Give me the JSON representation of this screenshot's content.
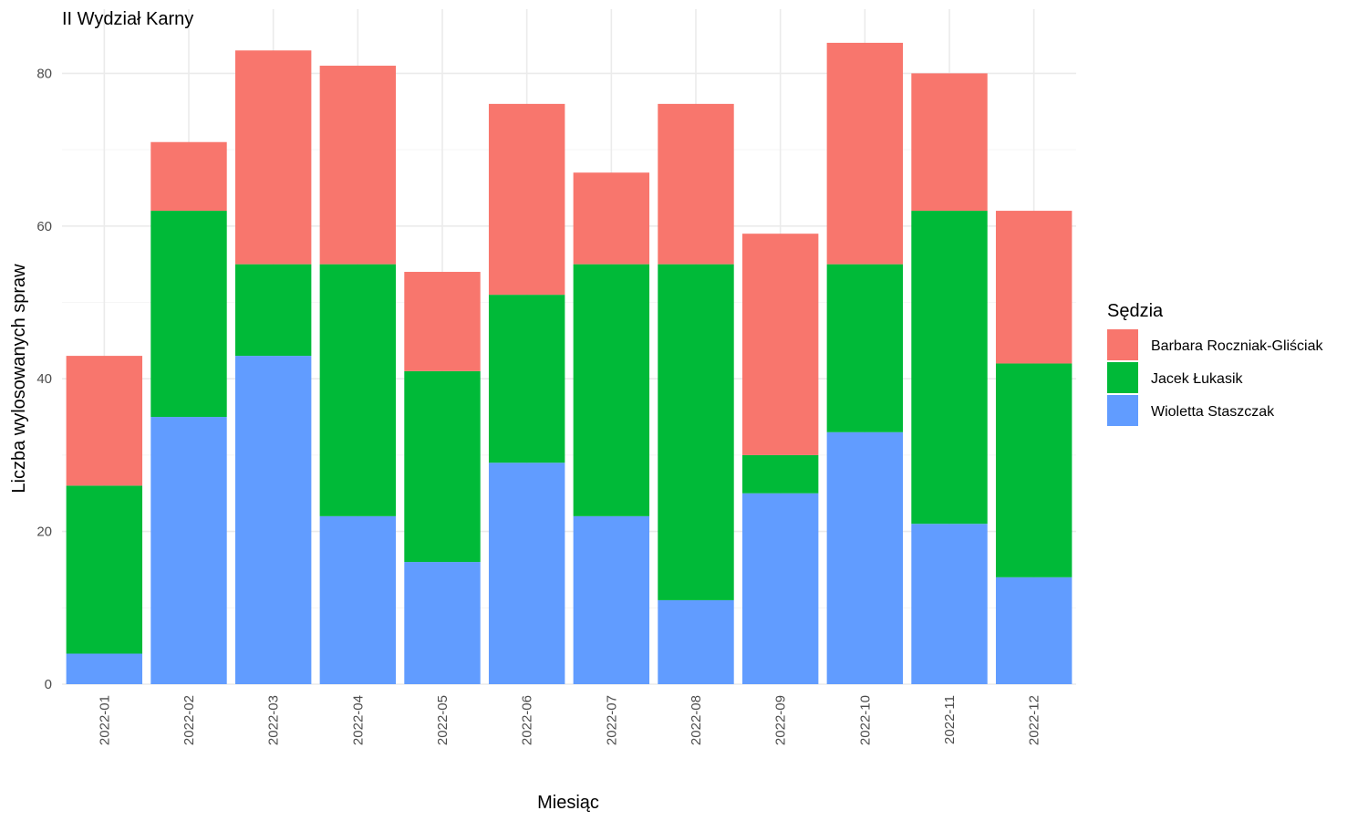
{
  "chart_data": {
    "type": "bar",
    "stacked": true,
    "title": "II Wydział Karny",
    "xlabel": "Miesiąc",
    "ylabel": "Liczba wylosowanych spraw",
    "ylim": [
      0,
      88
    ],
    "yticks": [
      0,
      20,
      40,
      60,
      80
    ],
    "grid": true,
    "legend_position": "right",
    "legend_title": "Sędzia",
    "categories": [
      "2022-01",
      "2022-02",
      "2022-03",
      "2022-04",
      "2022-05",
      "2022-06",
      "2022-07",
      "2022-08",
      "2022-09",
      "2022-10",
      "2022-11",
      "2022-12"
    ],
    "series": [
      {
        "name": "Wioletta Staszczak",
        "color": "#619CFF",
        "values": [
          4,
          35,
          43,
          22,
          16,
          29,
          22,
          11,
          25,
          33,
          21,
          14
        ]
      },
      {
        "name": "Jacek Łukasik",
        "color": "#00BA38",
        "values": [
          22,
          27,
          12,
          33,
          25,
          22,
          33,
          44,
          5,
          22,
          41,
          28
        ]
      },
      {
        "name": "Barbara Roczniak-Gliściak",
        "color": "#F8766D",
        "values": [
          17,
          9,
          28,
          26,
          13,
          25,
          12,
          21,
          29,
          29,
          18,
          20
        ]
      }
    ],
    "legend_order": [
      "Barbara Roczniak-Gliściak",
      "Jacek Łukasik",
      "Wioletta Staszczak"
    ]
  }
}
